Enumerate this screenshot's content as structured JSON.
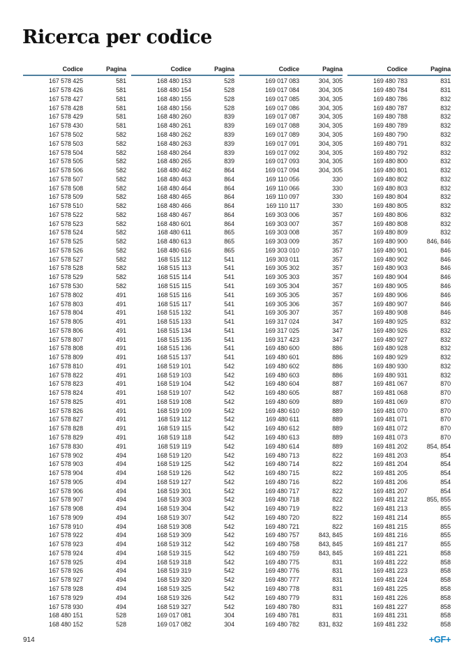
{
  "page": {
    "title": "Ricerca per codice",
    "page_number": "914",
    "logo_text": "+GF+"
  },
  "colors": {
    "header_rule_blue": "#4e7f9e",
    "logo_blue": "#0e7fc0",
    "text": "#1c1c1c"
  },
  "table": {
    "col_header_code": "Codice",
    "col_header_page": "Pagina",
    "columns": [
      {
        "rows": [
          [
            "167 578 425",
            "581"
          ],
          [
            "167 578 426",
            "581"
          ],
          [
            "167 578 427",
            "581"
          ],
          [
            "167 578 428",
            "581"
          ],
          [
            "167 578 429",
            "581"
          ],
          [
            "167 578 430",
            "581"
          ],
          [
            "167 578 502",
            "582"
          ],
          [
            "167 578 503",
            "582"
          ],
          [
            "167 578 504",
            "582"
          ],
          [
            "167 578 505",
            "582"
          ],
          [
            "167 578 506",
            "582"
          ],
          [
            "167 578 507",
            "582"
          ],
          [
            "167 578 508",
            "582"
          ],
          [
            "167 578 509",
            "582"
          ],
          [
            "167 578 510",
            "582"
          ],
          [
            "167 578 522",
            "582"
          ],
          [
            "167 578 523",
            "582"
          ],
          [
            "167 578 524",
            "582"
          ],
          [
            "167 578 525",
            "582"
          ],
          [
            "167 578 526",
            "582"
          ],
          [
            "167 578 527",
            "582"
          ],
          [
            "167 578 528",
            "582"
          ],
          [
            "167 578 529",
            "582"
          ],
          [
            "167 578 530",
            "582"
          ],
          [
            "167 578 802",
            "491"
          ],
          [
            "167 578 803",
            "491"
          ],
          [
            "167 578 804",
            "491"
          ],
          [
            "167 578 805",
            "491"
          ],
          [
            "167 578 806",
            "491"
          ],
          [
            "167 578 807",
            "491"
          ],
          [
            "167 578 808",
            "491"
          ],
          [
            "167 578 809",
            "491"
          ],
          [
            "167 578 810",
            "491"
          ],
          [
            "167 578 822",
            "491"
          ],
          [
            "167 578 823",
            "491"
          ],
          [
            "167 578 824",
            "491"
          ],
          [
            "167 578 825",
            "491"
          ],
          [
            "167 578 826",
            "491"
          ],
          [
            "167 578 827",
            "491"
          ],
          [
            "167 578 828",
            "491"
          ],
          [
            "167 578 829",
            "491"
          ],
          [
            "167 578 830",
            "491"
          ],
          [
            "167 578 902",
            "494"
          ],
          [
            "167 578 903",
            "494"
          ],
          [
            "167 578 904",
            "494"
          ],
          [
            "167 578 905",
            "494"
          ],
          [
            "167 578 906",
            "494"
          ],
          [
            "167 578 907",
            "494"
          ],
          [
            "167 578 908",
            "494"
          ],
          [
            "167 578 909",
            "494"
          ],
          [
            "167 578 910",
            "494"
          ],
          [
            "167 578 922",
            "494"
          ],
          [
            "167 578 923",
            "494"
          ],
          [
            "167 578 924",
            "494"
          ],
          [
            "167 578 925",
            "494"
          ],
          [
            "167 578 926",
            "494"
          ],
          [
            "167 578 927",
            "494"
          ],
          [
            "167 578 928",
            "494"
          ],
          [
            "167 578 929",
            "494"
          ],
          [
            "167 578 930",
            "494"
          ],
          [
            "168 480 151",
            "528"
          ],
          [
            "168 480 152",
            "528"
          ]
        ]
      },
      {
        "rows": [
          [
            "168 480 153",
            "528"
          ],
          [
            "168 480 154",
            "528"
          ],
          [
            "168 480 155",
            "528"
          ],
          [
            "168 480 156",
            "528"
          ],
          [
            "168 480 260",
            "839"
          ],
          [
            "168 480 261",
            "839"
          ],
          [
            "168 480 262",
            "839"
          ],
          [
            "168 480 263",
            "839"
          ],
          [
            "168 480 264",
            "839"
          ],
          [
            "168 480 265",
            "839"
          ],
          [
            "168 480 462",
            "864"
          ],
          [
            "168 480 463",
            "864"
          ],
          [
            "168 480 464",
            "864"
          ],
          [
            "168 480 465",
            "864"
          ],
          [
            "168 480 466",
            "864"
          ],
          [
            "168 480 467",
            "864"
          ],
          [
            "168 480 601",
            "864"
          ],
          [
            "168 480 611",
            "865"
          ],
          [
            "168 480 613",
            "865"
          ],
          [
            "168 480 616",
            "865"
          ],
          [
            "168 515 112",
            "541"
          ],
          [
            "168 515 113",
            "541"
          ],
          [
            "168 515 114",
            "541"
          ],
          [
            "168 515 115",
            "541"
          ],
          [
            "168 515 116",
            "541"
          ],
          [
            "168 515 117",
            "541"
          ],
          [
            "168 515 132",
            "541"
          ],
          [
            "168 515 133",
            "541"
          ],
          [
            "168 515 134",
            "541"
          ],
          [
            "168 515 135",
            "541"
          ],
          [
            "168 515 136",
            "541"
          ],
          [
            "168 515 137",
            "541"
          ],
          [
            "168 519 101",
            "542"
          ],
          [
            "168 519 103",
            "542"
          ],
          [
            "168 519 104",
            "542"
          ],
          [
            "168 519 107",
            "542"
          ],
          [
            "168 519 108",
            "542"
          ],
          [
            "168 519 109",
            "542"
          ],
          [
            "168 519 112",
            "542"
          ],
          [
            "168 519 115",
            "542"
          ],
          [
            "168 519 118",
            "542"
          ],
          [
            "168 519 119",
            "542"
          ],
          [
            "168 519 120",
            "542"
          ],
          [
            "168 519 125",
            "542"
          ],
          [
            "168 519 126",
            "542"
          ],
          [
            "168 519 127",
            "542"
          ],
          [
            "168 519 301",
            "542"
          ],
          [
            "168 519 303",
            "542"
          ],
          [
            "168 519 304",
            "542"
          ],
          [
            "168 519 307",
            "542"
          ],
          [
            "168 519 308",
            "542"
          ],
          [
            "168 519 309",
            "542"
          ],
          [
            "168 519 312",
            "542"
          ],
          [
            "168 519 315",
            "542"
          ],
          [
            "168 519 318",
            "542"
          ],
          [
            "168 519 319",
            "542"
          ],
          [
            "168 519 320",
            "542"
          ],
          [
            "168 519 325",
            "542"
          ],
          [
            "168 519 326",
            "542"
          ],
          [
            "168 519 327",
            "542"
          ],
          [
            "169 017 081",
            "304"
          ],
          [
            "169 017 082",
            "304"
          ]
        ]
      },
      {
        "rows": [
          [
            "169 017 083",
            "304, 305"
          ],
          [
            "169 017 084",
            "304, 305"
          ],
          [
            "169 017 085",
            "304, 305"
          ],
          [
            "169 017 086",
            "304, 305"
          ],
          [
            "169 017 087",
            "304, 305"
          ],
          [
            "169 017 088",
            "304, 305"
          ],
          [
            "169 017 089",
            "304, 305"
          ],
          [
            "169 017 091",
            "304, 305"
          ],
          [
            "169 017 092",
            "304, 305"
          ],
          [
            "169 017 093",
            "304, 305"
          ],
          [
            "169 017 094",
            "304, 305"
          ],
          [
            "169 110 056",
            "330"
          ],
          [
            "169 110 066",
            "330"
          ],
          [
            "169 110 097",
            "330"
          ],
          [
            "169 110 117",
            "330"
          ],
          [
            "169 303 006",
            "357"
          ],
          [
            "169 303 007",
            "357"
          ],
          [
            "169 303 008",
            "357"
          ],
          [
            "169 303 009",
            "357"
          ],
          [
            "169 303 010",
            "357"
          ],
          [
            "169 303 011",
            "357"
          ],
          [
            "169 305 302",
            "357"
          ],
          [
            "169 305 303",
            "357"
          ],
          [
            "169 305 304",
            "357"
          ],
          [
            "169 305 305",
            "357"
          ],
          [
            "169 305 306",
            "357"
          ],
          [
            "169 305 307",
            "357"
          ],
          [
            "169 317 024",
            "347"
          ],
          [
            "169 317 025",
            "347"
          ],
          [
            "169 317 423",
            "347"
          ],
          [
            "169 480 600",
            "886"
          ],
          [
            "169 480 601",
            "886"
          ],
          [
            "169 480 602",
            "886"
          ],
          [
            "169 480 603",
            "886"
          ],
          [
            "169 480 604",
            "887"
          ],
          [
            "169 480 605",
            "887"
          ],
          [
            "169 480 609",
            "889"
          ],
          [
            "169 480 610",
            "889"
          ],
          [
            "169 480 611",
            "889"
          ],
          [
            "169 480 612",
            "889"
          ],
          [
            "169 480 613",
            "889"
          ],
          [
            "169 480 614",
            "889"
          ],
          [
            "169 480 713",
            "822"
          ],
          [
            "169 480 714",
            "822"
          ],
          [
            "169 480 715",
            "822"
          ],
          [
            "169 480 716",
            "822"
          ],
          [
            "169 480 717",
            "822"
          ],
          [
            "169 480 718",
            "822"
          ],
          [
            "169 480 719",
            "822"
          ],
          [
            "169 480 720",
            "822"
          ],
          [
            "169 480 721",
            "822"
          ],
          [
            "169 480 757",
            "843, 845"
          ],
          [
            "169 480 758",
            "843, 845"
          ],
          [
            "169 480 759",
            "843, 845"
          ],
          [
            "169 480 775",
            "831"
          ],
          [
            "169 480 776",
            "831"
          ],
          [
            "169 480 777",
            "831"
          ],
          [
            "169 480 778",
            "831"
          ],
          [
            "169 480 779",
            "831"
          ],
          [
            "169 480 780",
            "831"
          ],
          [
            "169 480 781",
            "831"
          ],
          [
            "169 480 782",
            "831, 832"
          ]
        ]
      },
      {
        "rows": [
          [
            "169 480 783",
            "831"
          ],
          [
            "169 480 784",
            "831"
          ],
          [
            "169 480 786",
            "832"
          ],
          [
            "169 480 787",
            "832"
          ],
          [
            "169 480 788",
            "832"
          ],
          [
            "169 480 789",
            "832"
          ],
          [
            "169 480 790",
            "832"
          ],
          [
            "169 480 791",
            "832"
          ],
          [
            "169 480 792",
            "832"
          ],
          [
            "169 480 800",
            "832"
          ],
          [
            "169 480 801",
            "832"
          ],
          [
            "169 480 802",
            "832"
          ],
          [
            "169 480 803",
            "832"
          ],
          [
            "169 480 804",
            "832"
          ],
          [
            "169 480 805",
            "832"
          ],
          [
            "169 480 806",
            "832"
          ],
          [
            "169 480 808",
            "832"
          ],
          [
            "169 480 809",
            "832"
          ],
          [
            "169 480 900",
            "846, 846"
          ],
          [
            "169 480 901",
            "846"
          ],
          [
            "169 480 902",
            "846"
          ],
          [
            "169 480 903",
            "846"
          ],
          [
            "169 480 904",
            "846"
          ],
          [
            "169 480 905",
            "846"
          ],
          [
            "169 480 906",
            "846"
          ],
          [
            "169 480 907",
            "846"
          ],
          [
            "169 480 908",
            "846"
          ],
          [
            "169 480 925",
            "832"
          ],
          [
            "169 480 926",
            "832"
          ],
          [
            "169 480 927",
            "832"
          ],
          [
            "169 480 928",
            "832"
          ],
          [
            "169 480 929",
            "832"
          ],
          [
            "169 480 930",
            "832"
          ],
          [
            "169 480 931",
            "832"
          ],
          [
            "169 481 067",
            "870"
          ],
          [
            "169 481 068",
            "870"
          ],
          [
            "169 481 069",
            "870"
          ],
          [
            "169 481 070",
            "870"
          ],
          [
            "169 481 071",
            "870"
          ],
          [
            "169 481 072",
            "870"
          ],
          [
            "169 481 073",
            "870"
          ],
          [
            "169 481 202",
            "854, 854"
          ],
          [
            "169 481 203",
            "854"
          ],
          [
            "169 481 204",
            "854"
          ],
          [
            "169 481 205",
            "854"
          ],
          [
            "169 481 206",
            "854"
          ],
          [
            "169 481 207",
            "854"
          ],
          [
            "169 481 212",
            "855, 855"
          ],
          [
            "169 481 213",
            "855"
          ],
          [
            "169 481 214",
            "855"
          ],
          [
            "169 481 215",
            "855"
          ],
          [
            "169 481 216",
            "855"
          ],
          [
            "169 481 217",
            "855"
          ],
          [
            "169 481 221",
            "858"
          ],
          [
            "169 481 222",
            "858"
          ],
          [
            "169 481 223",
            "858"
          ],
          [
            "169 481 224",
            "858"
          ],
          [
            "169 481 225",
            "858"
          ],
          [
            "169 481 226",
            "858"
          ],
          [
            "169 481 227",
            "858"
          ],
          [
            "169 481 231",
            "858"
          ],
          [
            "169 481 232",
            "858"
          ]
        ]
      }
    ]
  }
}
